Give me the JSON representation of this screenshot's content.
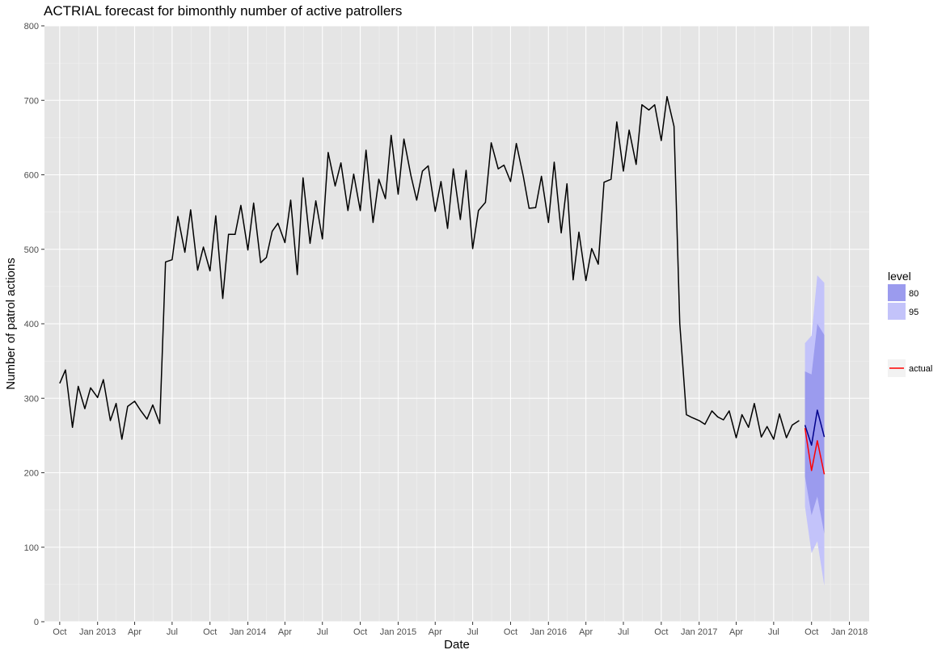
{
  "chart_data": {
    "type": "line",
    "title": "ACTRIAL forecast for bimonthly number of active patrollers",
    "xlabel": "Date",
    "ylabel": "Number of patrol actions",
    "ylim": [
      0,
      800
    ],
    "xlim": [
      "2012-08-25",
      "2018-02-18"
    ],
    "grid": true,
    "x_ticks": [
      {
        "date": "2012-10-01",
        "label": "Oct"
      },
      {
        "date": "2013-01-01",
        "label": "Jan 2013"
      },
      {
        "date": "2013-04-01",
        "label": "Apr"
      },
      {
        "date": "2013-07-01",
        "label": "Jul"
      },
      {
        "date": "2013-10-01",
        "label": "Oct"
      },
      {
        "date": "2014-01-01",
        "label": "Jan 2014"
      },
      {
        "date": "2014-04-01",
        "label": "Apr"
      },
      {
        "date": "2014-07-01",
        "label": "Jul"
      },
      {
        "date": "2014-10-01",
        "label": "Oct"
      },
      {
        "date": "2015-01-01",
        "label": "Jan 2015"
      },
      {
        "date": "2015-04-01",
        "label": "Apr"
      },
      {
        "date": "2015-07-01",
        "label": "Jul"
      },
      {
        "date": "2015-10-01",
        "label": "Oct"
      },
      {
        "date": "2016-01-01",
        "label": "Jan 2016"
      },
      {
        "date": "2016-04-01",
        "label": "Apr"
      },
      {
        "date": "2016-07-01",
        "label": "Jul"
      },
      {
        "date": "2016-10-01",
        "label": "Oct"
      },
      {
        "date": "2017-01-01",
        "label": "Jan 2017"
      },
      {
        "date": "2017-04-01",
        "label": "Apr"
      },
      {
        "date": "2017-07-01",
        "label": "Jul"
      },
      {
        "date": "2017-10-01",
        "label": "Oct"
      },
      {
        "date": "2018-01-01",
        "label": "Jan 2018"
      }
    ],
    "y_ticks": [
      0,
      100,
      200,
      300,
      400,
      500,
      600,
      700,
      800
    ],
    "legend": {
      "position": "right",
      "title": "level",
      "fill_items": [
        {
          "label": "80",
          "color": "#9b9bee"
        },
        {
          "label": "95",
          "color": "#c3c3fa"
        }
      ],
      "line_items": [
        {
          "label": "actual",
          "color": "#ff0000"
        }
      ]
    },
    "series": [
      {
        "color": "#000000",
        "x": [
          "2012-10-01",
          "2012-10-15",
          "2012-11-01",
          "2012-11-15",
          "2012-12-01",
          "2012-12-15",
          "2013-01-01",
          "2013-01-15",
          "2013-02-01",
          "2013-02-15",
          "2013-03-01",
          "2013-03-15",
          "2013-04-01",
          "2013-04-15",
          "2013-05-01",
          "2013-05-15",
          "2013-06-01",
          "2013-06-15",
          "2013-07-01",
          "2013-07-15",
          "2013-08-01",
          "2013-08-15",
          "2013-09-01",
          "2013-09-15",
          "2013-10-01",
          "2013-10-15",
          "2013-11-01",
          "2013-11-15",
          "2013-12-01",
          "2013-12-15",
          "2014-01-01",
          "2014-01-15",
          "2014-02-01",
          "2014-02-15",
          "2014-03-01",
          "2014-03-15",
          "2014-04-01",
          "2014-04-15",
          "2014-05-01",
          "2014-05-15",
          "2014-06-01",
          "2014-06-15",
          "2014-07-01",
          "2014-07-15",
          "2014-08-01",
          "2014-08-15",
          "2014-09-01",
          "2014-09-15",
          "2014-10-01",
          "2014-10-15",
          "2014-11-01",
          "2014-11-15",
          "2014-12-01",
          "2014-12-15",
          "2015-01-01",
          "2015-01-15",
          "2015-02-01",
          "2015-02-15",
          "2015-03-01",
          "2015-03-15",
          "2015-04-01",
          "2015-04-15",
          "2015-05-01",
          "2015-05-15",
          "2015-06-01",
          "2015-06-15",
          "2015-07-01",
          "2015-07-15",
          "2015-08-01",
          "2015-08-15",
          "2015-09-01",
          "2015-09-15",
          "2015-10-01",
          "2015-10-15",
          "2015-11-01",
          "2015-11-15",
          "2015-12-01",
          "2015-12-15",
          "2016-01-01",
          "2016-01-15",
          "2016-02-01",
          "2016-02-15",
          "2016-03-01",
          "2016-03-15",
          "2016-04-01",
          "2016-04-15",
          "2016-05-01",
          "2016-05-15",
          "2016-06-01",
          "2016-06-15",
          "2016-07-01",
          "2016-07-15",
          "2016-08-01",
          "2016-08-15",
          "2016-09-01",
          "2016-09-15",
          "2016-10-01",
          "2016-10-15",
          "2016-11-01",
          "2016-11-15",
          "2016-12-01",
          "2016-12-15",
          "2017-01-01",
          "2017-01-15",
          "2017-02-01",
          "2017-02-15",
          "2017-03-01",
          "2017-03-15",
          "2017-04-01",
          "2017-04-15",
          "2017-05-01",
          "2017-05-15",
          "2017-06-01",
          "2017-06-15",
          "2017-07-01",
          "2017-07-15",
          "2017-08-01",
          "2017-08-15",
          "2017-09-01"
        ],
        "values": [
          320,
          338,
          261,
          316,
          286,
          314,
          301,
          325,
          270,
          293,
          245,
          289,
          296,
          284,
          272,
          291,
          266,
          483,
          486,
          544,
          496,
          553,
          472,
          503,
          471,
          545,
          434,
          520,
          520,
          559,
          499,
          562,
          482,
          489,
          524,
          535,
          509,
          566,
          466,
          596,
          508,
          565,
          514,
          630,
          585,
          616,
          552,
          601,
          552,
          633,
          536,
          594,
          568,
          653,
          574,
          648,
          599,
          566,
          605,
          612,
          551,
          591,
          528,
          608,
          540,
          606,
          501,
          552,
          563,
          643,
          608,
          613,
          591,
          642,
          598,
          555,
          556,
          598,
          536,
          617,
          522,
          588,
          459,
          523,
          458,
          501,
          480,
          590,
          594,
          671,
          605,
          660,
          614,
          694,
          687,
          694,
          646,
          705,
          665,
          400,
          278,
          274,
          270,
          265,
          283,
          275,
          271,
          283,
          247,
          278,
          261,
          293,
          248,
          262,
          245,
          279,
          247,
          264,
          270
        ]
      },
      {
        "color": "#00008b",
        "x": [
          "2017-09-15",
          "2017-10-01",
          "2017-10-15",
          "2017-11-01"
        ],
        "values": [
          264,
          237,
          284,
          248
        ]
      },
      {
        "name": "actual",
        "color": "#ff0000",
        "x": [
          "2017-09-15",
          "2017-10-01",
          "2017-10-15",
          "2017-11-01"
        ],
        "values": [
          260,
          203,
          243,
          198
        ]
      }
    ],
    "intervals": [
      {
        "level": "95",
        "color": "#c3c3fa",
        "x": [
          "2017-09-15",
          "2017-10-01",
          "2017-10-15",
          "2017-11-01"
        ],
        "lower": [
          155,
          92,
          108,
          48
        ],
        "upper": [
          374,
          384,
          465,
          455
        ]
      },
      {
        "level": "80",
        "color": "#9b9bee",
        "x": [
          "2017-09-15",
          "2017-10-01",
          "2017-10-15",
          "2017-11-01"
        ],
        "lower": [
          195,
          143,
          168,
          118
        ],
        "upper": [
          336,
          332,
          400,
          385
        ]
      }
    ]
  }
}
